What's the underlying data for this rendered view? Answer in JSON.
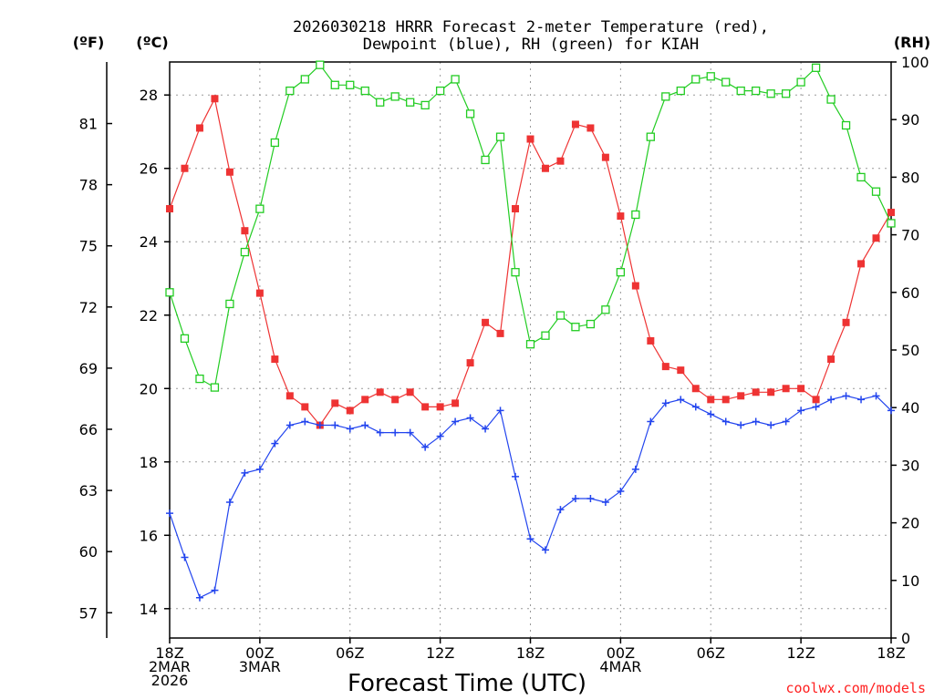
{
  "chart_data": {
    "type": "line",
    "title_line1": "2026030218 HRRR Forecast 2-meter Temperature (red),",
    "title_line2": "Dewpoint (blue), RH (green) for KIAH",
    "xlabel": "Forecast Time (UTC)",
    "unit_left_outer": "(ºF)",
    "unit_left_inner": "(ºC)",
    "unit_right": "(RH)",
    "credit": "coolwx.com/models",
    "x_hours": [
      0,
      1,
      2,
      3,
      4,
      5,
      6,
      7,
      8,
      9,
      10,
      11,
      12,
      13,
      14,
      15,
      16,
      17,
      18,
      19,
      20,
      21,
      22,
      23,
      24,
      25,
      26,
      27,
      28,
      29,
      30,
      31,
      32,
      33,
      34,
      35,
      36,
      37,
      38,
      39,
      40,
      41,
      42,
      43,
      44,
      45,
      46,
      47,
      48
    ],
    "xlim": [
      0,
      48
    ],
    "celsius_lim": [
      13.2,
      28.9
    ],
    "rh_lim": [
      0,
      100
    ],
    "celsius_ticks": [
      14,
      16,
      18,
      20,
      22,
      24,
      26,
      28
    ],
    "fahrenheit_ticks": [
      57,
      60,
      63,
      66,
      69,
      72,
      75,
      78,
      81
    ],
    "rh_ticks": [
      0,
      10,
      20,
      30,
      40,
      50,
      60,
      70,
      80,
      90,
      100
    ],
    "x_ticks": [
      {
        "hour": 0,
        "lines": [
          "18Z",
          "2MAR",
          "2026"
        ]
      },
      {
        "hour": 6,
        "lines": [
          "00Z",
          "3MAR"
        ]
      },
      {
        "hour": 12,
        "lines": [
          "06Z"
        ]
      },
      {
        "hour": 18,
        "lines": [
          "12Z"
        ]
      },
      {
        "hour": 24,
        "lines": [
          "18Z"
        ]
      },
      {
        "hour": 30,
        "lines": [
          "00Z",
          "4MAR"
        ]
      },
      {
        "hour": 36,
        "lines": [
          "06Z"
        ]
      },
      {
        "hour": 42,
        "lines": [
          "12Z"
        ]
      },
      {
        "hour": 48,
        "lines": [
          "18Z"
        ]
      }
    ],
    "series": [
      {
        "name": "Temperature",
        "unit": "C",
        "color": "#ee3333",
        "marker": "filled-square",
        "values": [
          24.9,
          26.0,
          27.1,
          27.9,
          25.9,
          24.3,
          22.6,
          20.8,
          19.8,
          19.5,
          19.0,
          19.6,
          19.4,
          19.7,
          19.9,
          19.7,
          19.9,
          19.5,
          19.5,
          19.6,
          20.7,
          21.8,
          21.5,
          24.9,
          26.8,
          26.0,
          26.2,
          27.2,
          27.1,
          26.3,
          24.7,
          22.8,
          21.3,
          20.6,
          20.5,
          20.0,
          19.7,
          19.7,
          19.8,
          19.9,
          19.9,
          20.0,
          20.0,
          19.7,
          20.8,
          21.8,
          23.4,
          24.1,
          24.8
        ]
      },
      {
        "name": "Dewpoint",
        "unit": "C",
        "color": "#2244ee",
        "marker": "plus",
        "values": [
          16.6,
          15.4,
          14.3,
          14.5,
          16.9,
          17.7,
          17.8,
          18.5,
          19.0,
          19.1,
          19.0,
          19.0,
          18.9,
          19.0,
          18.8,
          18.8,
          18.8,
          18.4,
          18.7,
          19.1,
          19.2,
          18.9,
          19.4,
          17.6,
          15.9,
          15.6,
          16.7,
          17.0,
          17.0,
          16.9,
          17.2,
          17.8,
          19.1,
          19.6,
          19.7,
          19.5,
          19.3,
          19.1,
          19.0,
          19.1,
          19.0,
          19.1,
          19.4,
          19.5,
          19.7,
          19.8,
          19.7,
          19.8,
          19.4
        ]
      },
      {
        "name": "RH",
        "unit": "%",
        "color": "#22cc22",
        "marker": "open-square",
        "values": [
          60,
          52,
          45,
          43.5,
          58,
          67,
          74.5,
          86,
          95,
          97,
          99.5,
          96,
          96,
          95,
          93,
          94,
          93,
          92.5,
          95,
          97,
          91,
          83,
          87,
          63.5,
          51,
          52.5,
          56,
          54,
          54.5,
          57,
          63.5,
          73.5,
          87,
          94,
          95,
          97,
          97.5,
          96.5,
          95,
          95,
          94.5,
          94.5,
          96.5,
          99,
          93.5,
          89,
          80,
          77.5,
          72
        ]
      }
    ]
  }
}
